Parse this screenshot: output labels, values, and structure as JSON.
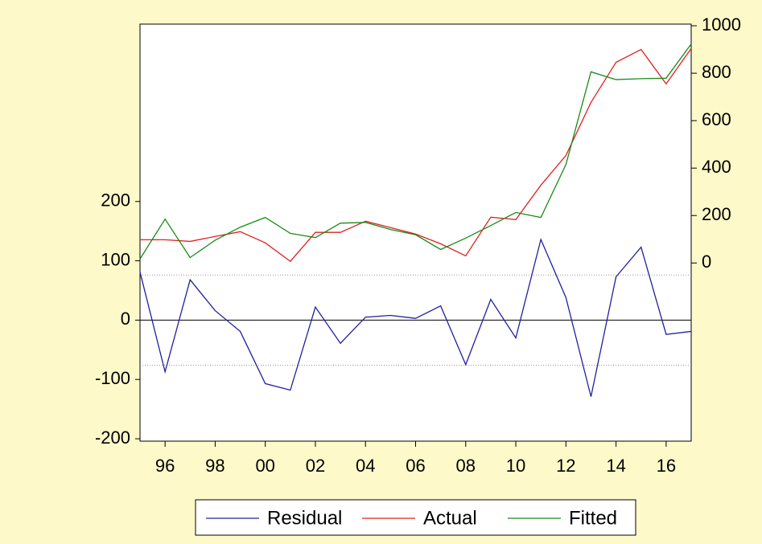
{
  "chart_data": {
    "type": "line",
    "x": [
      1995,
      1996,
      1997,
      1998,
      1999,
      2000,
      2001,
      2002,
      2003,
      2004,
      2005,
      2006,
      2007,
      2008,
      2009,
      2010,
      2011,
      2012,
      2013,
      2014,
      2015,
      2016,
      2017
    ],
    "xlim": [
      1995,
      2017
    ],
    "xticks": [
      {
        "value": 1996,
        "label": "96"
      },
      {
        "value": 1998,
        "label": "98"
      },
      {
        "value": 2000,
        "label": "00"
      },
      {
        "value": 2002,
        "label": "02"
      },
      {
        "value": 2004,
        "label": "04"
      },
      {
        "value": 2006,
        "label": "06"
      },
      {
        "value": 2008,
        "label": "08"
      },
      {
        "value": 2010,
        "label": "10"
      },
      {
        "value": 2012,
        "label": "12"
      },
      {
        "value": 2014,
        "label": "14"
      },
      {
        "value": 2016,
        "label": "16"
      }
    ],
    "ylim": [
      -204,
      499
    ],
    "yticks": [
      -200,
      -100,
      0,
      100,
      200
    ],
    "y2lim": [
      -751,
      1007
    ],
    "y2ticks": [
      0,
      200,
      400,
      600,
      800,
      1000
    ],
    "hlines": [
      {
        "value": 0,
        "style": "solid"
      },
      {
        "value": 76,
        "style": "dotted"
      },
      {
        "value": -76,
        "style": "dotted"
      }
    ],
    "series": [
      {
        "name": "Residual",
        "color": "#2020a0",
        "values": [
          81,
          -87,
          68,
          16,
          -19,
          -107,
          -118,
          22,
          -39,
          5,
          8,
          3,
          24,
          -75,
          35,
          -30,
          136,
          38,
          -129,
          73,
          123,
          -24,
          -19
        ]
      },
      {
        "name": "Actual",
        "color": "#e02020",
        "axis": "y2",
        "values": [
          98,
          98,
          91,
          112,
          132,
          85,
          7,
          129,
          129,
          176,
          149,
          122,
          81,
          30,
          193,
          183,
          328,
          453,
          677,
          846,
          900,
          755,
          904
        ]
      },
      {
        "name": "Fitted",
        "color": "#1a8a1a",
        "axis": "y2",
        "values": [
          17,
          185,
          23,
          96,
          151,
          192,
          125,
          107,
          168,
          171,
          141,
          119,
          57,
          105,
          158,
          213,
          192,
          415,
          806,
          773,
          777,
          779,
          923
        ]
      }
    ],
    "legend": "bottom"
  }
}
